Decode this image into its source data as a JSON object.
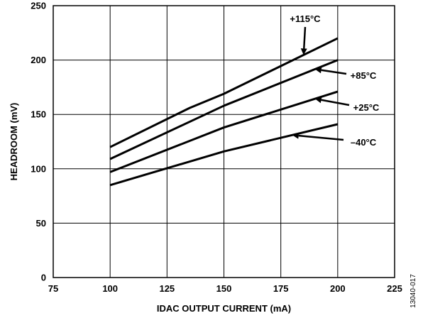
{
  "chart_data": {
    "type": "line",
    "xlabel": "IDAC OUTPUT CURRENT (mA)",
    "ylabel": "HEADROOM (mV)",
    "xlim": [
      75,
      225
    ],
    "ylim": [
      0,
      250
    ],
    "x_ticks": [
      "75",
      "100",
      "125",
      "150",
      "175",
      "200",
      "225"
    ],
    "y_ticks": [
      "0",
      "50",
      "100",
      "150",
      "200",
      "250"
    ],
    "grid": true,
    "series": [
      {
        "name": "+115°C",
        "x": [
          100,
          135,
          150,
          200
        ],
        "y": [
          120,
          156,
          169,
          220
        ]
      },
      {
        "name": "+85°C",
        "x": [
          100,
          150,
          200
        ],
        "y": [
          109,
          158,
          200
        ]
      },
      {
        "name": "+25°C",
        "x": [
          100,
          150,
          200
        ],
        "y": [
          97,
          138,
          171
        ]
      },
      {
        "name": "–40°C",
        "x": [
          100,
          150,
          200
        ],
        "y": [
          85,
          116,
          141
        ]
      }
    ]
  },
  "figure_id": "13040-017"
}
